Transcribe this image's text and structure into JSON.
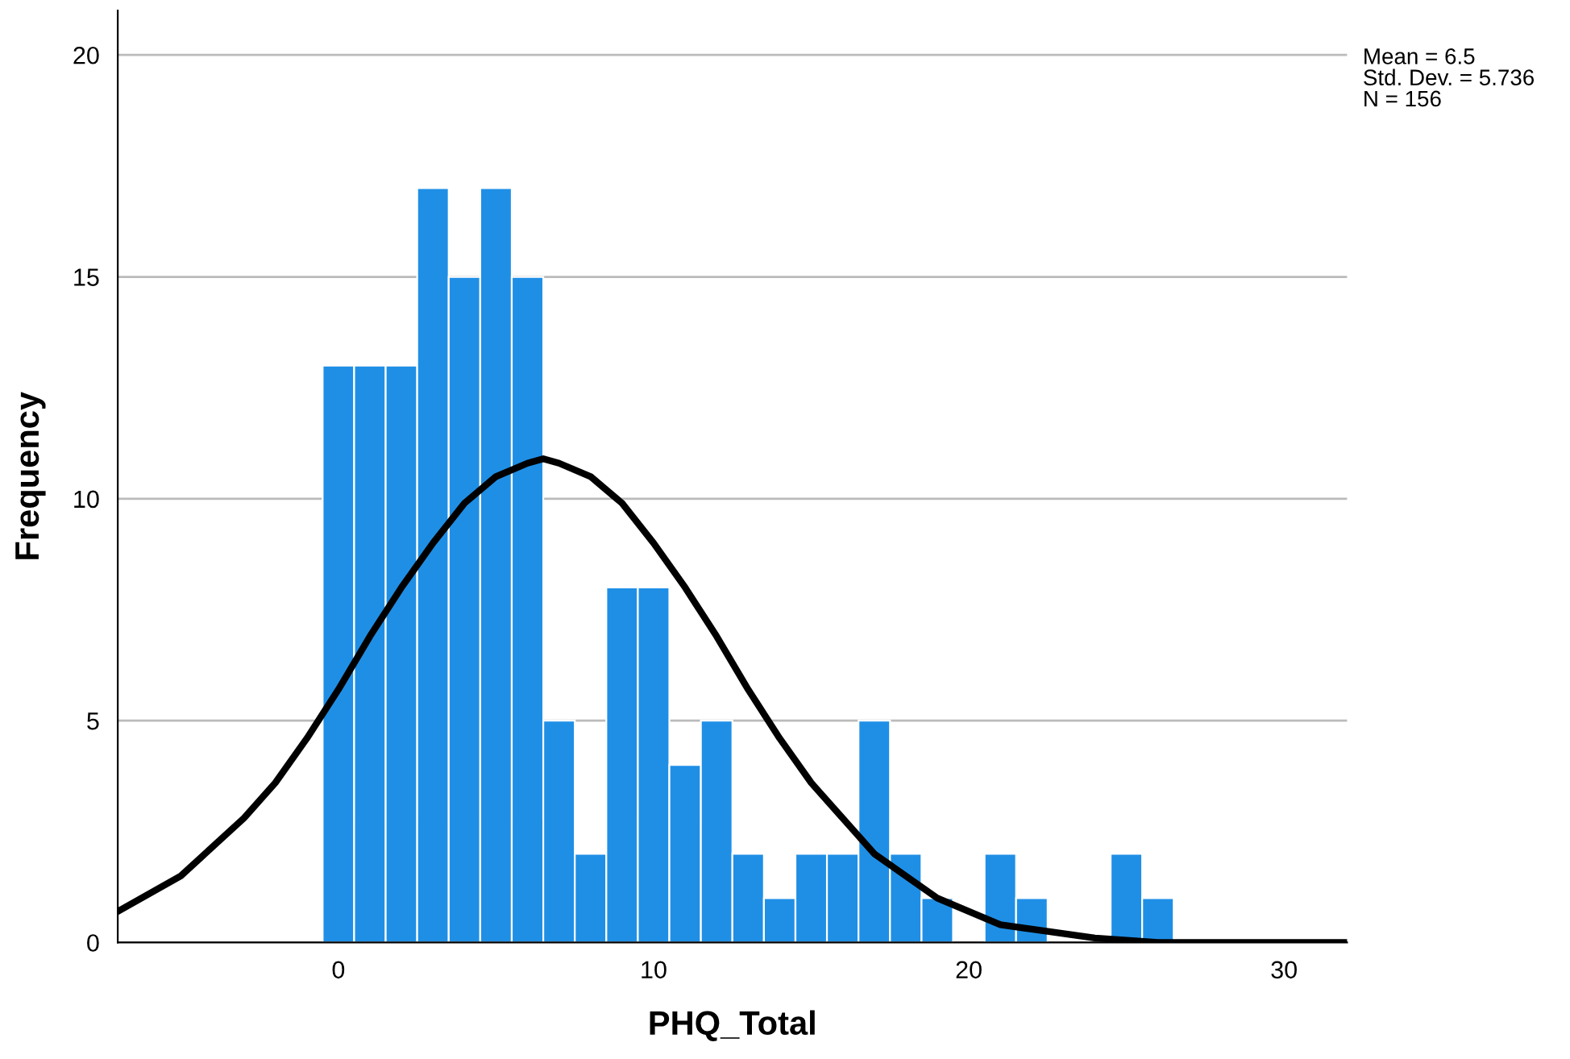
{
  "chart_data": {
    "type": "histogram",
    "xlabel": "PHQ_Total",
    "ylabel": "Frequency",
    "bins": [
      -0.5,
      0.5,
      1.5,
      2.5,
      3.5,
      4.5,
      5.5,
      6.5,
      7.5,
      8.5,
      9.5,
      10.5,
      11.5,
      12.5,
      13.5,
      14.5,
      15.5,
      16.5,
      17.5,
      18.5,
      19.5,
      20.5,
      21.5,
      22.5,
      23.5,
      24.5,
      25.5,
      26.5
    ],
    "values": [
      13,
      13,
      13,
      17,
      15,
      17,
      15,
      5,
      2,
      8,
      8,
      4,
      5,
      2,
      1,
      2,
      2,
      5,
      2,
      1,
      0,
      2,
      1,
      0,
      0,
      2,
      1
    ],
    "color": "#1f8fe6",
    "series": [
      {
        "type": "line",
        "color": "#000000",
        "x": [
          -7,
          -5,
          -3,
          -2,
          -1,
          0,
          1,
          2,
          3,
          4,
          5,
          6,
          6.5,
          7,
          8,
          9,
          10,
          11,
          12,
          13,
          14,
          15,
          16,
          17,
          18,
          19,
          20,
          21,
          22,
          24,
          26,
          28,
          30,
          32
        ],
        "values": [
          0.7,
          1.5,
          2.8,
          3.6,
          4.6,
          5.7,
          6.9,
          8.0,
          9.0,
          9.9,
          10.5,
          10.8,
          10.9,
          10.8,
          10.5,
          9.9,
          9.0,
          8.0,
          6.9,
          5.7,
          4.6,
          3.6,
          2.8,
          2.0,
          1.5,
          1.0,
          0.7,
          0.4,
          0.3,
          0.1,
          0.0,
          0.0,
          0.0,
          0.0
        ]
      }
    ],
    "xlim": [
      -7,
      32
    ],
    "ylim": [
      0,
      21
    ],
    "xticks": [
      0,
      10,
      20,
      30
    ],
    "yticks": [
      0,
      5,
      10,
      15,
      20
    ],
    "grid": "y",
    "annotations": [
      "Mean = 6.5",
      "Std. Dev. = 5.736",
      "N = 156"
    ]
  }
}
